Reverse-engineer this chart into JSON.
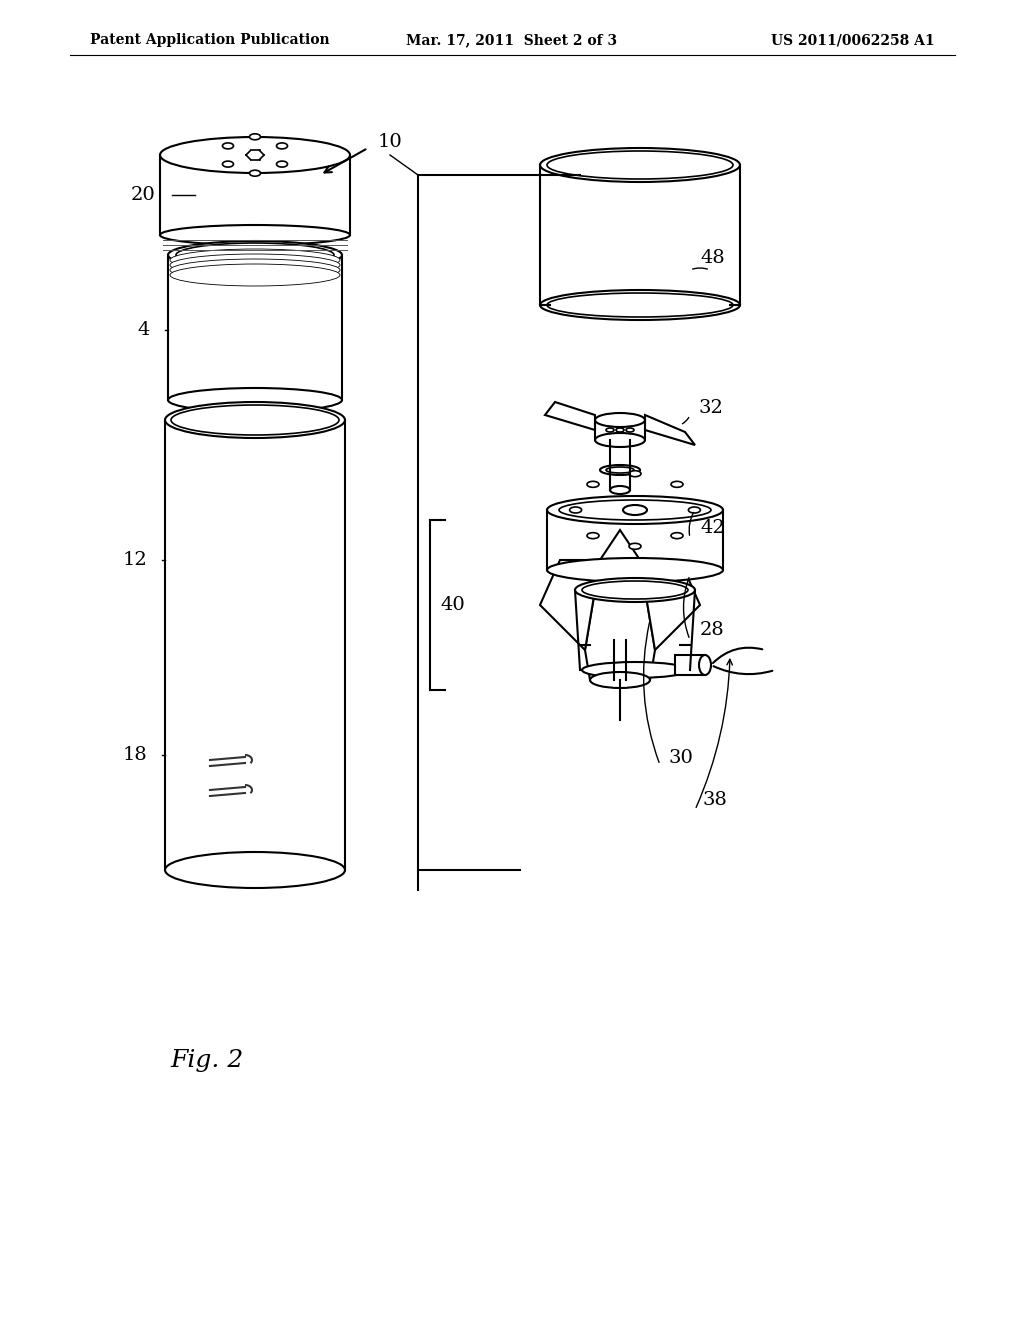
{
  "background_color": "#ffffff",
  "line_color": "#000000",
  "line_width": 1.5,
  "header_left": "Patent Application Publication",
  "header_mid": "Mar. 17, 2011  Sheet 2 of 3",
  "header_right": "US 2011/0062258 A1",
  "fig_label": "Fig. 2"
}
